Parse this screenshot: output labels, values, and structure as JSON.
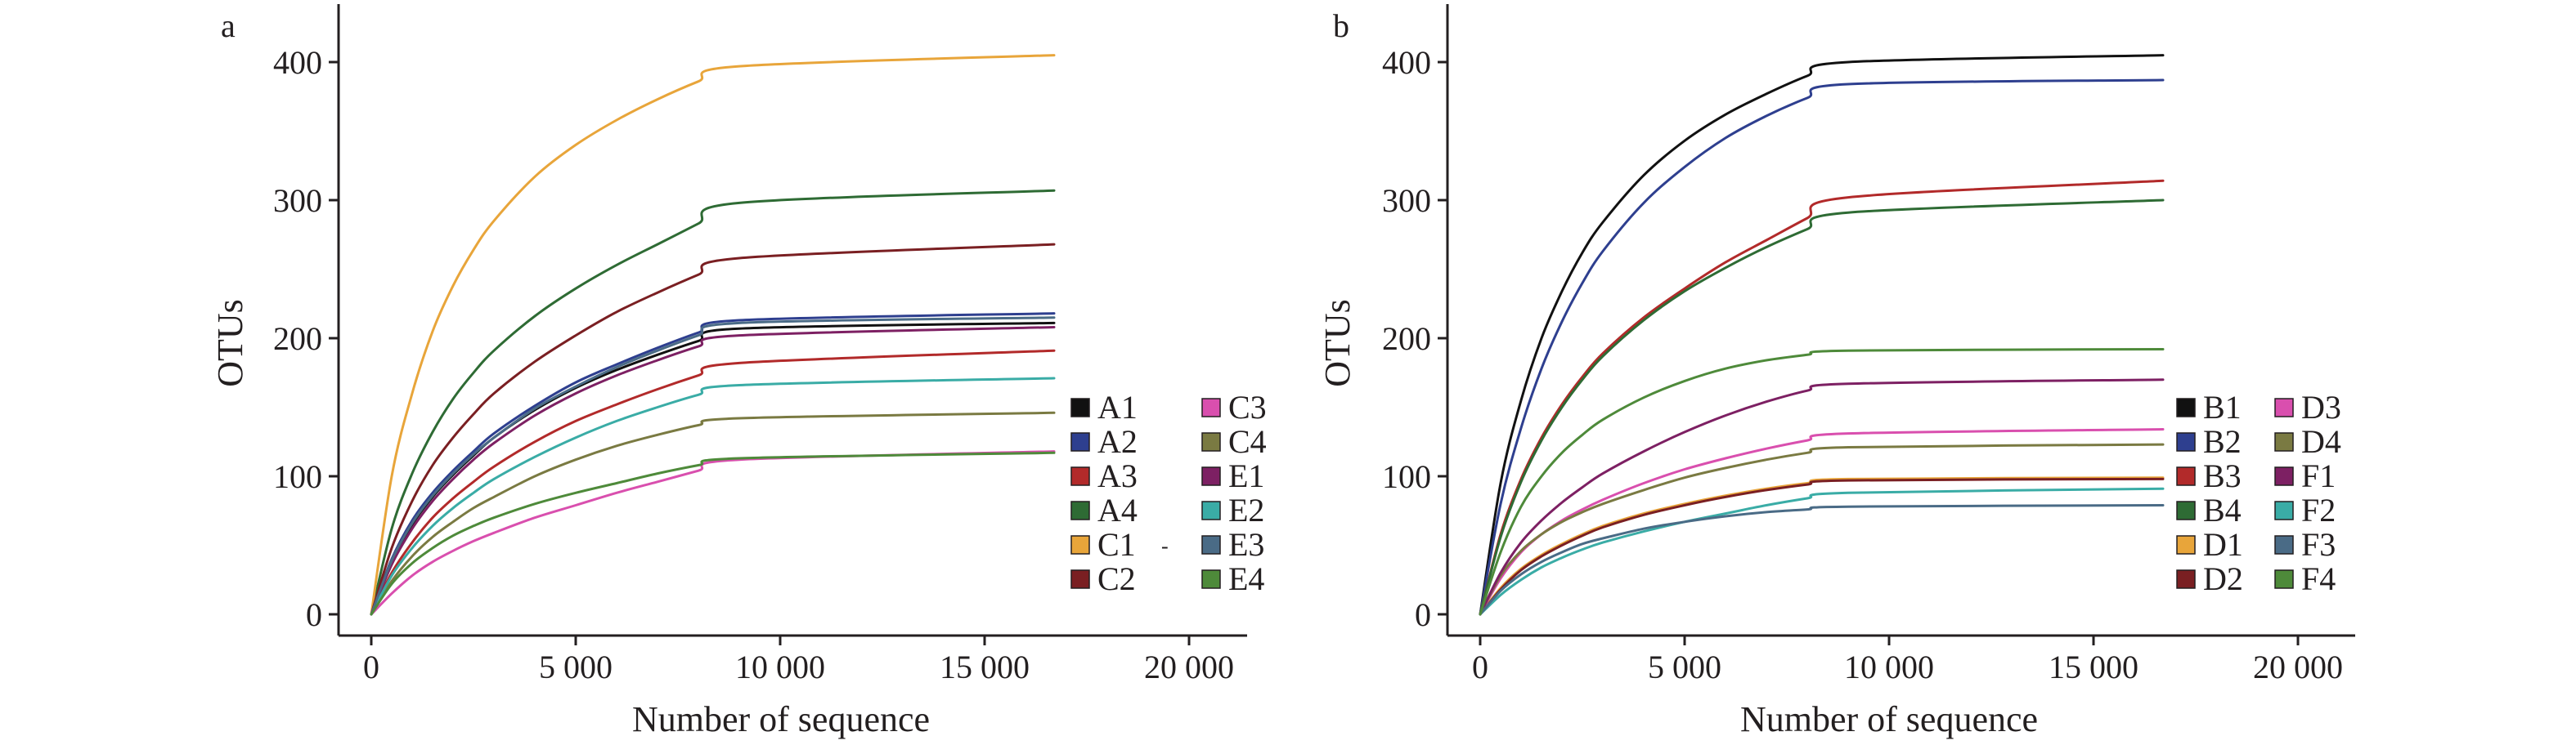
{
  "chart_data": [
    {
      "type": "line",
      "panel_label": "a",
      "xlabel": "Number of sequence",
      "ylabel": "OTUs",
      "xlim": [
        0,
        20000
      ],
      "ylim": [
        0,
        440
      ],
      "x_ticks": [
        0,
        5000,
        10000,
        15000,
        20000
      ],
      "x_tick_labels": [
        "0",
        "5 000",
        "10 000",
        "15 000",
        "20 000"
      ],
      "y_ticks": [
        0,
        100,
        200,
        300,
        400
      ],
      "y_tick_labels": [
        "0",
        "100",
        "200",
        "300",
        "400"
      ],
      "grid": false,
      "legend_position": "lower-right",
      "legend_columns": 2,
      "x_max": 16700,
      "series": [
        {
          "name": "A1",
          "color": "#111111",
          "values": [
            0,
            38,
            65,
            85,
            101,
            115,
            128,
            148,
            164,
            177,
            188,
            198,
            207,
            211
          ]
        },
        {
          "name": "A2",
          "color": "#2e3f8f",
          "values": [
            0,
            40,
            68,
            88,
            104,
            118,
            131,
            151,
            168,
            181,
            193,
            204,
            213,
            218
          ]
        },
        {
          "name": "A3",
          "color": "#b22a2a",
          "values": [
            0,
            30,
            52,
            70,
            84,
            96,
            107,
            125,
            140,
            152,
            163,
            173,
            182,
            191
          ]
        },
        {
          "name": "A4",
          "color": "#2e6b34",
          "values": [
            0,
            62,
            102,
            132,
            156,
            175,
            191,
            216,
            236,
            253,
            268,
            283,
            298,
            307
          ]
        },
        {
          "name": "C1",
          "color": "#e8a53a",
          "values": [
            0,
            100,
            160,
            205,
            238,
            264,
            285,
            317,
            340,
            358,
            373,
            386,
            397,
            405
          ]
        },
        {
          "name": "C2",
          "color": "#7a1f22",
          "values": [
            0,
            48,
            82,
            108,
            128,
            145,
            160,
            183,
            202,
            219,
            233,
            246,
            258,
            268
          ]
        },
        {
          "name": "C3",
          "color": "#d94fae",
          "values": [
            0,
            15,
            28,
            38,
            46,
            53,
            59,
            70,
            79,
            88,
            96,
            104,
            112,
            118
          ]
        },
        {
          "name": "C4",
          "color": "#7a7a42",
          "values": [
            0,
            24,
            42,
            56,
            67,
            77,
            85,
            100,
            112,
            122,
            130,
            137,
            142,
            146
          ]
        },
        {
          "name": "E1",
          "color": "#7d2063",
          "values": [
            0,
            36,
            62,
            82,
            98,
            112,
            124,
            144,
            160,
            173,
            184,
            194,
            202,
            208
          ]
        },
        {
          "name": "E2",
          "color": "#3aaca6",
          "values": [
            0,
            28,
            48,
            64,
            77,
            88,
            98,
            114,
            128,
            140,
            150,
            159,
            166,
            171
          ]
        },
        {
          "name": "E3",
          "color": "#4a6b86",
          "values": [
            0,
            39,
            66,
            86,
            102,
            116,
            128,
            149,
            165,
            179,
            191,
            202,
            211,
            215
          ]
        },
        {
          "name": "E4",
          "color": "#4e8a3a",
          "values": [
            0,
            22,
            37,
            48,
            57,
            64,
            70,
            80,
            88,
            95,
            102,
            108,
            113,
            117
          ]
        }
      ]
    },
    {
      "type": "line",
      "panel_label": "b",
      "xlabel": "Number of sequence",
      "ylabel": "OTUs",
      "xlim": [
        0,
        20000
      ],
      "ylim": [
        0,
        440
      ],
      "x_ticks": [
        0,
        5000,
        10000,
        15000,
        20000
      ],
      "x_tick_labels": [
        "0",
        "5 000",
        "10 000",
        "15 000",
        "20 000"
      ],
      "y_ticks": [
        0,
        100,
        200,
        300,
        400
      ],
      "y_tick_labels": [
        "0",
        "100",
        "200",
        "300",
        "400"
      ],
      "grid": false,
      "legend_position": "lower-right",
      "legend_columns": 2,
      "x_max": 16700,
      "series": [
        {
          "name": "B1",
          "color": "#111111",
          "values": [
            0,
            95,
            155,
            200,
            234,
            262,
            284,
            318,
            343,
            362,
            377,
            390,
            400,
            405
          ]
        },
        {
          "name": "B2",
          "color": "#2e3f8f",
          "values": [
            0,
            80,
            135,
            178,
            212,
            240,
            263,
            298,
            324,
            345,
            361,
            374,
            384,
            387
          ]
        },
        {
          "name": "B3",
          "color": "#b22a2a",
          "values": [
            0,
            58,
            98,
            128,
            152,
            172,
            189,
            215,
            236,
            255,
            271,
            287,
            302,
            314
          ]
        },
        {
          "name": "B4",
          "color": "#2e6b34",
          "values": [
            0,
            56,
            96,
            126,
            150,
            170,
            187,
            213,
            234,
            251,
            266,
            279,
            291,
            300
          ]
        },
        {
          "name": "D1",
          "color": "#e8a53a",
          "values": [
            0,
            19,
            33,
            43,
            51,
            58,
            64,
            73,
            80,
            86,
            91,
            95,
            98,
            99
          ]
        },
        {
          "name": "D2",
          "color": "#7a1f22",
          "values": [
            0,
            18,
            32,
            42,
            50,
            57,
            63,
            72,
            79,
            85,
            90,
            94,
            97,
            98
          ]
        },
        {
          "name": "D3",
          "color": "#d94fae",
          "values": [
            0,
            26,
            45,
            58,
            68,
            76,
            83,
            95,
            105,
            113,
            120,
            126,
            131,
            134
          ]
        },
        {
          "name": "D4",
          "color": "#7a7a42",
          "values": [
            0,
            28,
            46,
            58,
            67,
            74,
            80,
            90,
            99,
            106,
            112,
            117,
            121,
            123
          ]
        },
        {
          "name": "F1",
          "color": "#7d2063",
          "values": [
            0,
            30,
            52,
            68,
            81,
            92,
            102,
            118,
            132,
            144,
            154,
            162,
            167,
            170
          ]
        },
        {
          "name": "F2",
          "color": "#3aaca6",
          "values": [
            0,
            14,
            25,
            34,
            41,
            47,
            52,
            60,
            67,
            73,
            79,
            84,
            88,
            91
          ]
        },
        {
          "name": "F3",
          "color": "#4a6b86",
          "values": [
            0,
            17,
            29,
            38,
            45,
            51,
            55,
            62,
            67,
            71,
            74,
            76,
            78,
            79
          ]
        },
        {
          "name": "F4",
          "color": "#4e8a3a",
          "values": [
            0,
            45,
            78,
            100,
            117,
            130,
            141,
            157,
            169,
            178,
            184,
            188,
            191,
            192
          ]
        }
      ],
      "x_sample_points": [
        0,
        500,
        1000,
        1500,
        2000,
        2500,
        3000,
        4000,
        5000,
        6000,
        7000,
        8000,
        9000,
        16700
      ]
    }
  ],
  "stray_mark": "-"
}
